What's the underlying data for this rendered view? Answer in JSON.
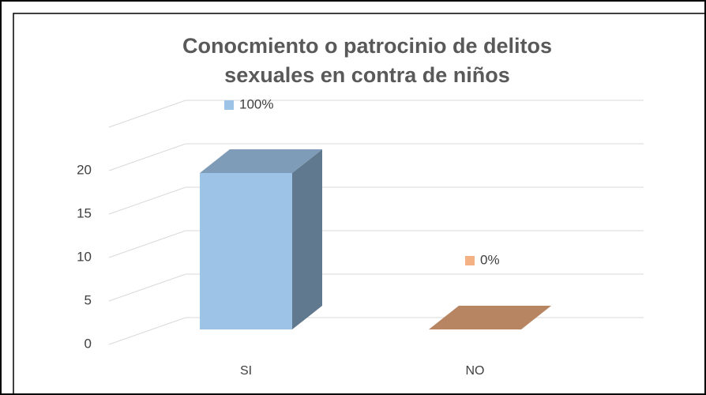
{
  "chart_data": {
    "type": "bar",
    "title": [
      "Conocmiento o patrocinio de delitos",
      "sexuales en contra de niños"
    ],
    "categories": [
      "SI",
      "NO"
    ],
    "values": [
      18,
      0
    ],
    "colors": [
      "#9dc3e6",
      "#f4b183"
    ],
    "data_labels": [
      "100%",
      "0%"
    ],
    "ylim": [
      0,
      25
    ],
    "yticks": [
      0,
      5,
      10,
      15,
      20
    ],
    "grid": true,
    "three_d": true
  }
}
